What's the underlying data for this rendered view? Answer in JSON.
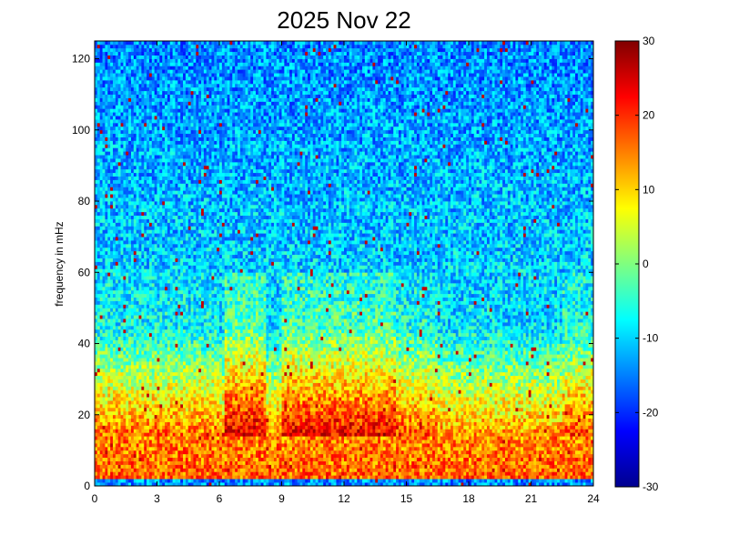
{
  "chart_data": {
    "type": "heatmap",
    "title": "2025 Nov 22",
    "xlabel": "",
    "ylabel": "frequency in mHz",
    "xlim": [
      0,
      24
    ],
    "ylim": [
      0,
      125
    ],
    "xticks": [
      0,
      3,
      6,
      9,
      12,
      15,
      18,
      21,
      24
    ],
    "yticks": [
      0,
      20,
      40,
      60,
      80,
      100,
      120
    ],
    "colorbar": {
      "colormap": "jet",
      "clim": [
        -30,
        30
      ],
      "ticks": [
        -30,
        -20,
        -10,
        0,
        10,
        20,
        30
      ]
    },
    "grid": false,
    "description_of_values": "Spectral power in dB: ~15-25 below 15 mHz, ~0-10 in 15-40 mHz (strongest around hours 7-8 and 9-14), falling to ~-15 above 60 mHz"
  }
}
